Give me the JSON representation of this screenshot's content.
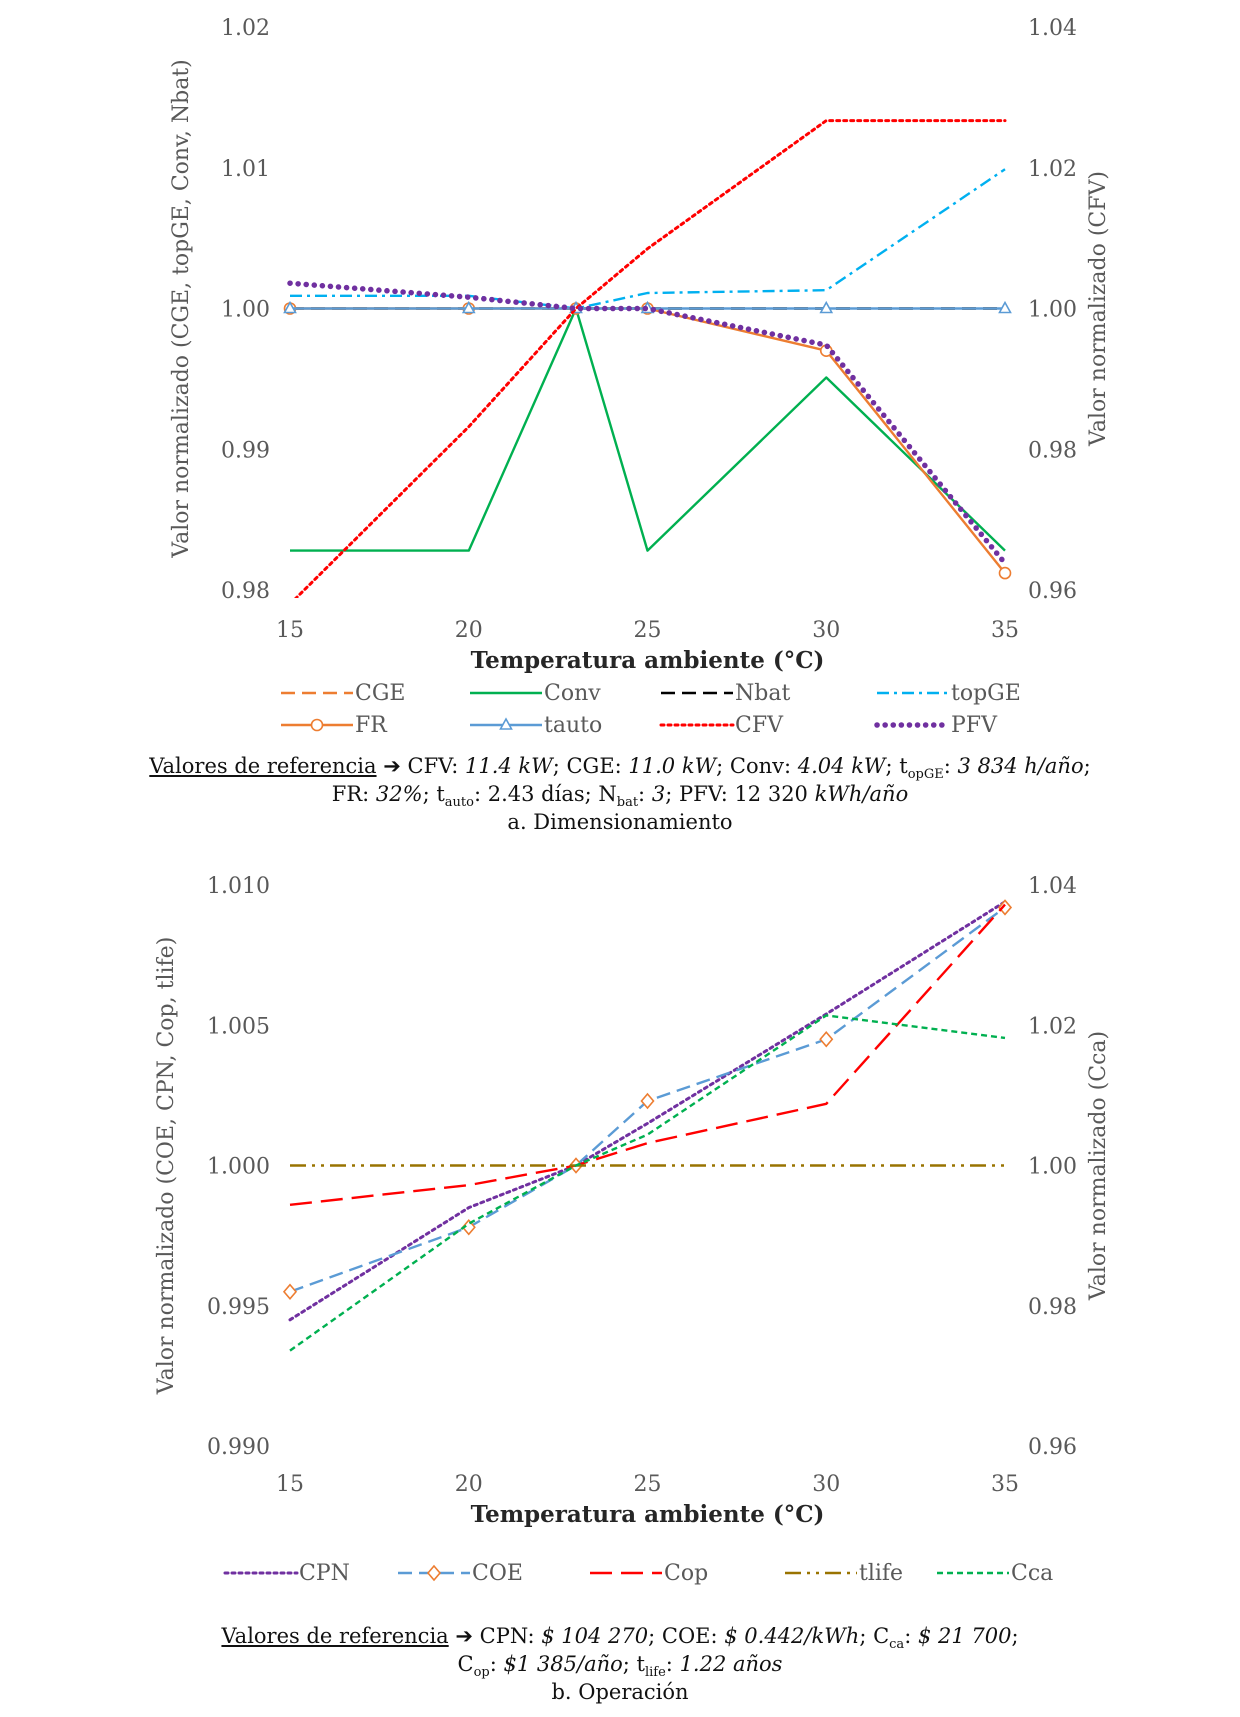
{
  "chart_data": [
    {
      "type": "line",
      "title": "a. Dimensionamiento",
      "xlabel": "Temperatura ambiente (°C)",
      "ylabel_left": "Valor normalizado (CGE, topGE, Conv, Nbat)",
      "ylabel_right": "Valor normalizado (CFV)",
      "x": [
        15,
        20,
        23,
        25,
        30,
        35
      ],
      "xticks": [
        "15",
        "20",
        "25",
        "30",
        "35"
      ],
      "xlim": [
        15,
        35
      ],
      "ylim_left": [
        0.98,
        1.02
      ],
      "yticks_left": [
        "0.98",
        "0.99",
        "1.00",
        "1.01",
        "1.02"
      ],
      "ylim_right": [
        0.96,
        1.04
      ],
      "yticks_right": [
        "0.96",
        "0.98",
        "1.00",
        "1.02",
        "1.04"
      ],
      "series": [
        {
          "name": "CGE",
          "axis": "left",
          "color": "#ED7D31",
          "style": "dash",
          "marker": "none",
          "values": [
            1.0,
            1.0,
            1.0,
            1.0,
            1.0,
            1.0
          ]
        },
        {
          "name": "Conv",
          "axis": "left",
          "color": "#00B050",
          "style": "solid",
          "marker": "none",
          "values": [
            0.9828,
            0.9828,
            1.0,
            0.9828,
            0.9951,
            0.9828
          ]
        },
        {
          "name": "Nbat",
          "axis": "left",
          "color": "#000000",
          "style": "dash",
          "marker": "none",
          "values": [
            1.0,
            1.0,
            1.0,
            1.0,
            1.0,
            1.0
          ]
        },
        {
          "name": "topGE",
          "axis": "left",
          "color": "#00B0F0",
          "style": "dashdot",
          "marker": "none",
          "values": [
            1.0009,
            1.0009,
            1.0,
            1.0011,
            1.0013,
            1.0099
          ]
        },
        {
          "name": "FR",
          "axis": "left",
          "color": "#ED7D31",
          "style": "solid",
          "marker": "circle",
          "values": [
            1.0,
            1.0,
            1.0,
            1.0,
            0.997,
            0.9812
          ]
        },
        {
          "name": "tauto",
          "axis": "left",
          "color": "#5B9BD5",
          "style": "solid",
          "marker": "triangle",
          "values": [
            1.0,
            1.0,
            1.0,
            1.0,
            1.0,
            1.0
          ]
        },
        {
          "name": "CFV",
          "axis": "right",
          "color": "#FF0000",
          "style": "dot",
          "marker": "none",
          "values": [
            0.958,
            0.9832,
            1.0,
            1.0085,
            1.0267,
            1.0267
          ]
        },
        {
          "name": "PFV",
          "axis": "left",
          "color": "#7030A0",
          "style": "bigdot",
          "marker": "none",
          "values": [
            1.0018,
            1.0008,
            1.0,
            1.0,
            0.9974,
            0.9819
          ]
        }
      ]
    },
    {
      "type": "line",
      "title": "b. Operación",
      "xlabel": "Temperatura ambiente (°C)",
      "ylabel_left": "Valor normalizado (COE, CPN, Cop, tlife)",
      "ylabel_right": "Valor normalizado (Cca)",
      "x": [
        15,
        20,
        23,
        25,
        30,
        35
      ],
      "xticks": [
        "15",
        "20",
        "25",
        "30",
        "35"
      ],
      "xlim": [
        15,
        35
      ],
      "ylim_left": [
        0.99,
        1.01
      ],
      "yticks_left": [
        "0.990",
        "0.995",
        "1.000",
        "1.005",
        "1.010"
      ],
      "ylim_right": [
        0.96,
        1.04
      ],
      "yticks_right": [
        "0.96",
        "0.98",
        "1.00",
        "1.02",
        "1.04"
      ],
      "series": [
        {
          "name": "CPN",
          "axis": "left",
          "color": "#7030A0",
          "style": "dot",
          "marker": "none",
          "values": [
            0.9945,
            0.9985,
            1.0,
            1.0015,
            1.0054,
            1.0094
          ]
        },
        {
          "name": "COE",
          "axis": "left",
          "color": "#5B9BD5",
          "style": "dash",
          "marker": "diamond",
          "values": [
            0.9955,
            0.9978,
            1.0,
            1.0023,
            1.0045,
            1.0092
          ]
        },
        {
          "name": "Cop",
          "axis": "left",
          "color": "#FF0000",
          "style": "longdash",
          "marker": "none",
          "values": [
            0.9986,
            0.9993,
            1.0,
            1.0008,
            1.0022,
            1.0093
          ]
        },
        {
          "name": "tlife",
          "axis": "left",
          "color": "#997300",
          "style": "dashdotdot",
          "marker": "none",
          "values": [
            1.0,
            1.0,
            1.0,
            1.0,
            1.0,
            1.0
          ]
        },
        {
          "name": "Cca",
          "axis": "right",
          "color": "#00B050",
          "style": "shortdash",
          "marker": "none",
          "values": [
            0.9736,
            0.9917,
            1.0,
            1.0044,
            1.0214,
            1.0182
          ]
        }
      ]
    }
  ],
  "caption_a": {
    "ref_label": "Valores de referencia",
    "arrow": "➔",
    "l1": [
      {
        "t": " CFV: "
      },
      {
        "t": "11.4 kW",
        "i": 1
      },
      {
        "t": "; CGE: "
      },
      {
        "t": "11.0 kW",
        "i": 1
      },
      {
        "t": "; Conv: "
      },
      {
        "t": "4.04 kW",
        "i": 1
      },
      {
        "t": "; t"
      },
      {
        "t": "opGE",
        "s": 1
      },
      {
        "t": ": "
      },
      {
        "t": "3 834 h/año",
        "i": 1
      },
      {
        "t": ";"
      }
    ],
    "l2": [
      {
        "t": "FR: "
      },
      {
        "t": "32%",
        "i": 1
      },
      {
        "t": "; t"
      },
      {
        "t": "auto",
        "s": 1
      },
      {
        "t": ": 2.43 días; N"
      },
      {
        "t": "bat",
        "s": 1
      },
      {
        "t": ": "
      },
      {
        "t": "3",
        "i": 1
      },
      {
        "t": "; PFV: 12 320 "
      },
      {
        "t": "kWh/año",
        "i": 1
      }
    ],
    "title": "a. Dimensionamiento"
  },
  "caption_b": {
    "ref_label": "Valores de referencia",
    "arrow": "➔",
    "l1": [
      {
        "t": " CPN: "
      },
      {
        "t": "$ 104 270",
        "i": 1
      },
      {
        "t": "; COE: "
      },
      {
        "t": "$ 0.442/kWh",
        "i": 1
      },
      {
        "t": "; C"
      },
      {
        "t": "ca",
        "s": 1
      },
      {
        "t": ": "
      },
      {
        "t": "$ 21 700",
        "i": 1
      },
      {
        "t": ";"
      }
    ],
    "l2": [
      {
        "t": "C"
      },
      {
        "t": "op",
        "s": 1
      },
      {
        "t": ": "
      },
      {
        "t": "$1 385/año",
        "i": 1
      },
      {
        "t": "; t"
      },
      {
        "t": "life",
        "s": 1
      },
      {
        "t": ": "
      },
      {
        "t": "1.22 años",
        "i": 1
      }
    ],
    "title": "b. Operación"
  }
}
